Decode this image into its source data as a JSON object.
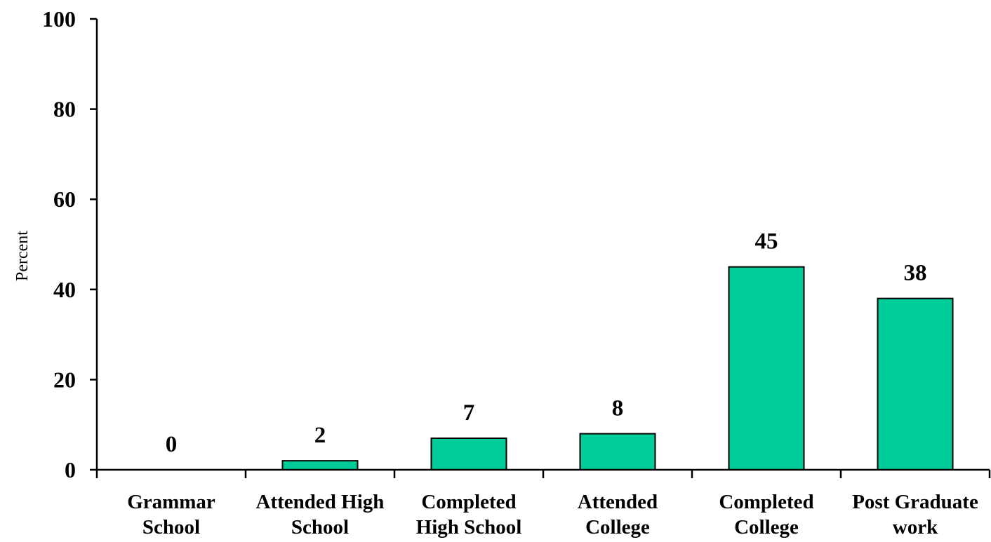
{
  "chart_data": {
    "type": "bar",
    "title": "",
    "xlabel": "",
    "ylabel": "Percent",
    "ylim": [
      0,
      100
    ],
    "yticks": [
      0,
      20,
      40,
      60,
      80,
      100
    ],
    "grid": false,
    "categories": [
      [
        "Grammar",
        "School"
      ],
      [
        "Attended High",
        "School"
      ],
      [
        "Completed",
        "High School"
      ],
      [
        "Attended",
        "College"
      ],
      [
        "Completed",
        "College"
      ],
      [
        "Post Graduate",
        "work"
      ]
    ],
    "values": [
      0,
      2,
      7,
      8,
      45,
      38
    ],
    "data_labels": [
      "0",
      "2",
      "7",
      "8",
      "45",
      "38"
    ],
    "colors": {
      "bar_fill": "#00CC99",
      "bar_stroke": "#000000",
      "axis": "#000000"
    }
  }
}
